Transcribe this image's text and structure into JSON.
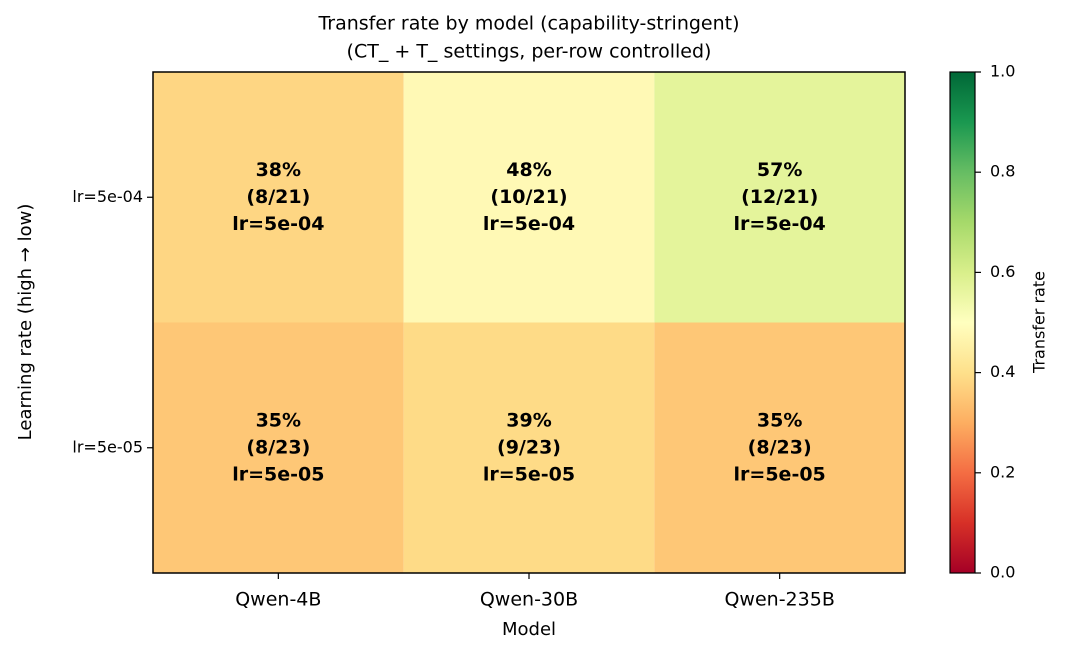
{
  "chart_data": {
    "type": "heatmap",
    "title": "Transfer rate by model (capability-stringent)",
    "subtitle": "(CT_ + T_ settings, per-row controlled)",
    "x_label": "Model",
    "y_label": "Learning rate (high → low)",
    "categories": [
      "Qwen-4B",
      "Qwen-30B",
      "Qwen-235B"
    ],
    "y_categories": [
      "lr=5e-04",
      "lr=5e-05"
    ],
    "values": [
      [
        0.38,
        0.48,
        0.57
      ],
      [
        0.35,
        0.39,
        0.35
      ]
    ],
    "value_labels": [
      [
        "38%",
        "48%",
        "57%"
      ],
      [
        "35%",
        "39%",
        "35%"
      ]
    ],
    "cell_counts": [
      [
        "(8/21)",
        "(10/21)",
        "(12/21)"
      ],
      [
        "(8/23)",
        "(9/23)",
        "(8/23)"
      ]
    ],
    "cell_notes": [
      [
        "lr=5e-04",
        "lr=5e-04",
        "lr=5e-04"
      ],
      [
        "lr=5e-05",
        "lr=5e-05",
        "lr=5e-05"
      ]
    ],
    "colormap": "RdYlGn",
    "colorbar_label": "Transfer rate",
    "clim": [
      0,
      1
    ],
    "cticks": [
      {
        "value": 0,
        "label": "0.0"
      },
      0.2,
      0.4,
      0.6,
      0.8,
      {
        "value": 1,
        "label": "1.0"
      }
    ]
  }
}
